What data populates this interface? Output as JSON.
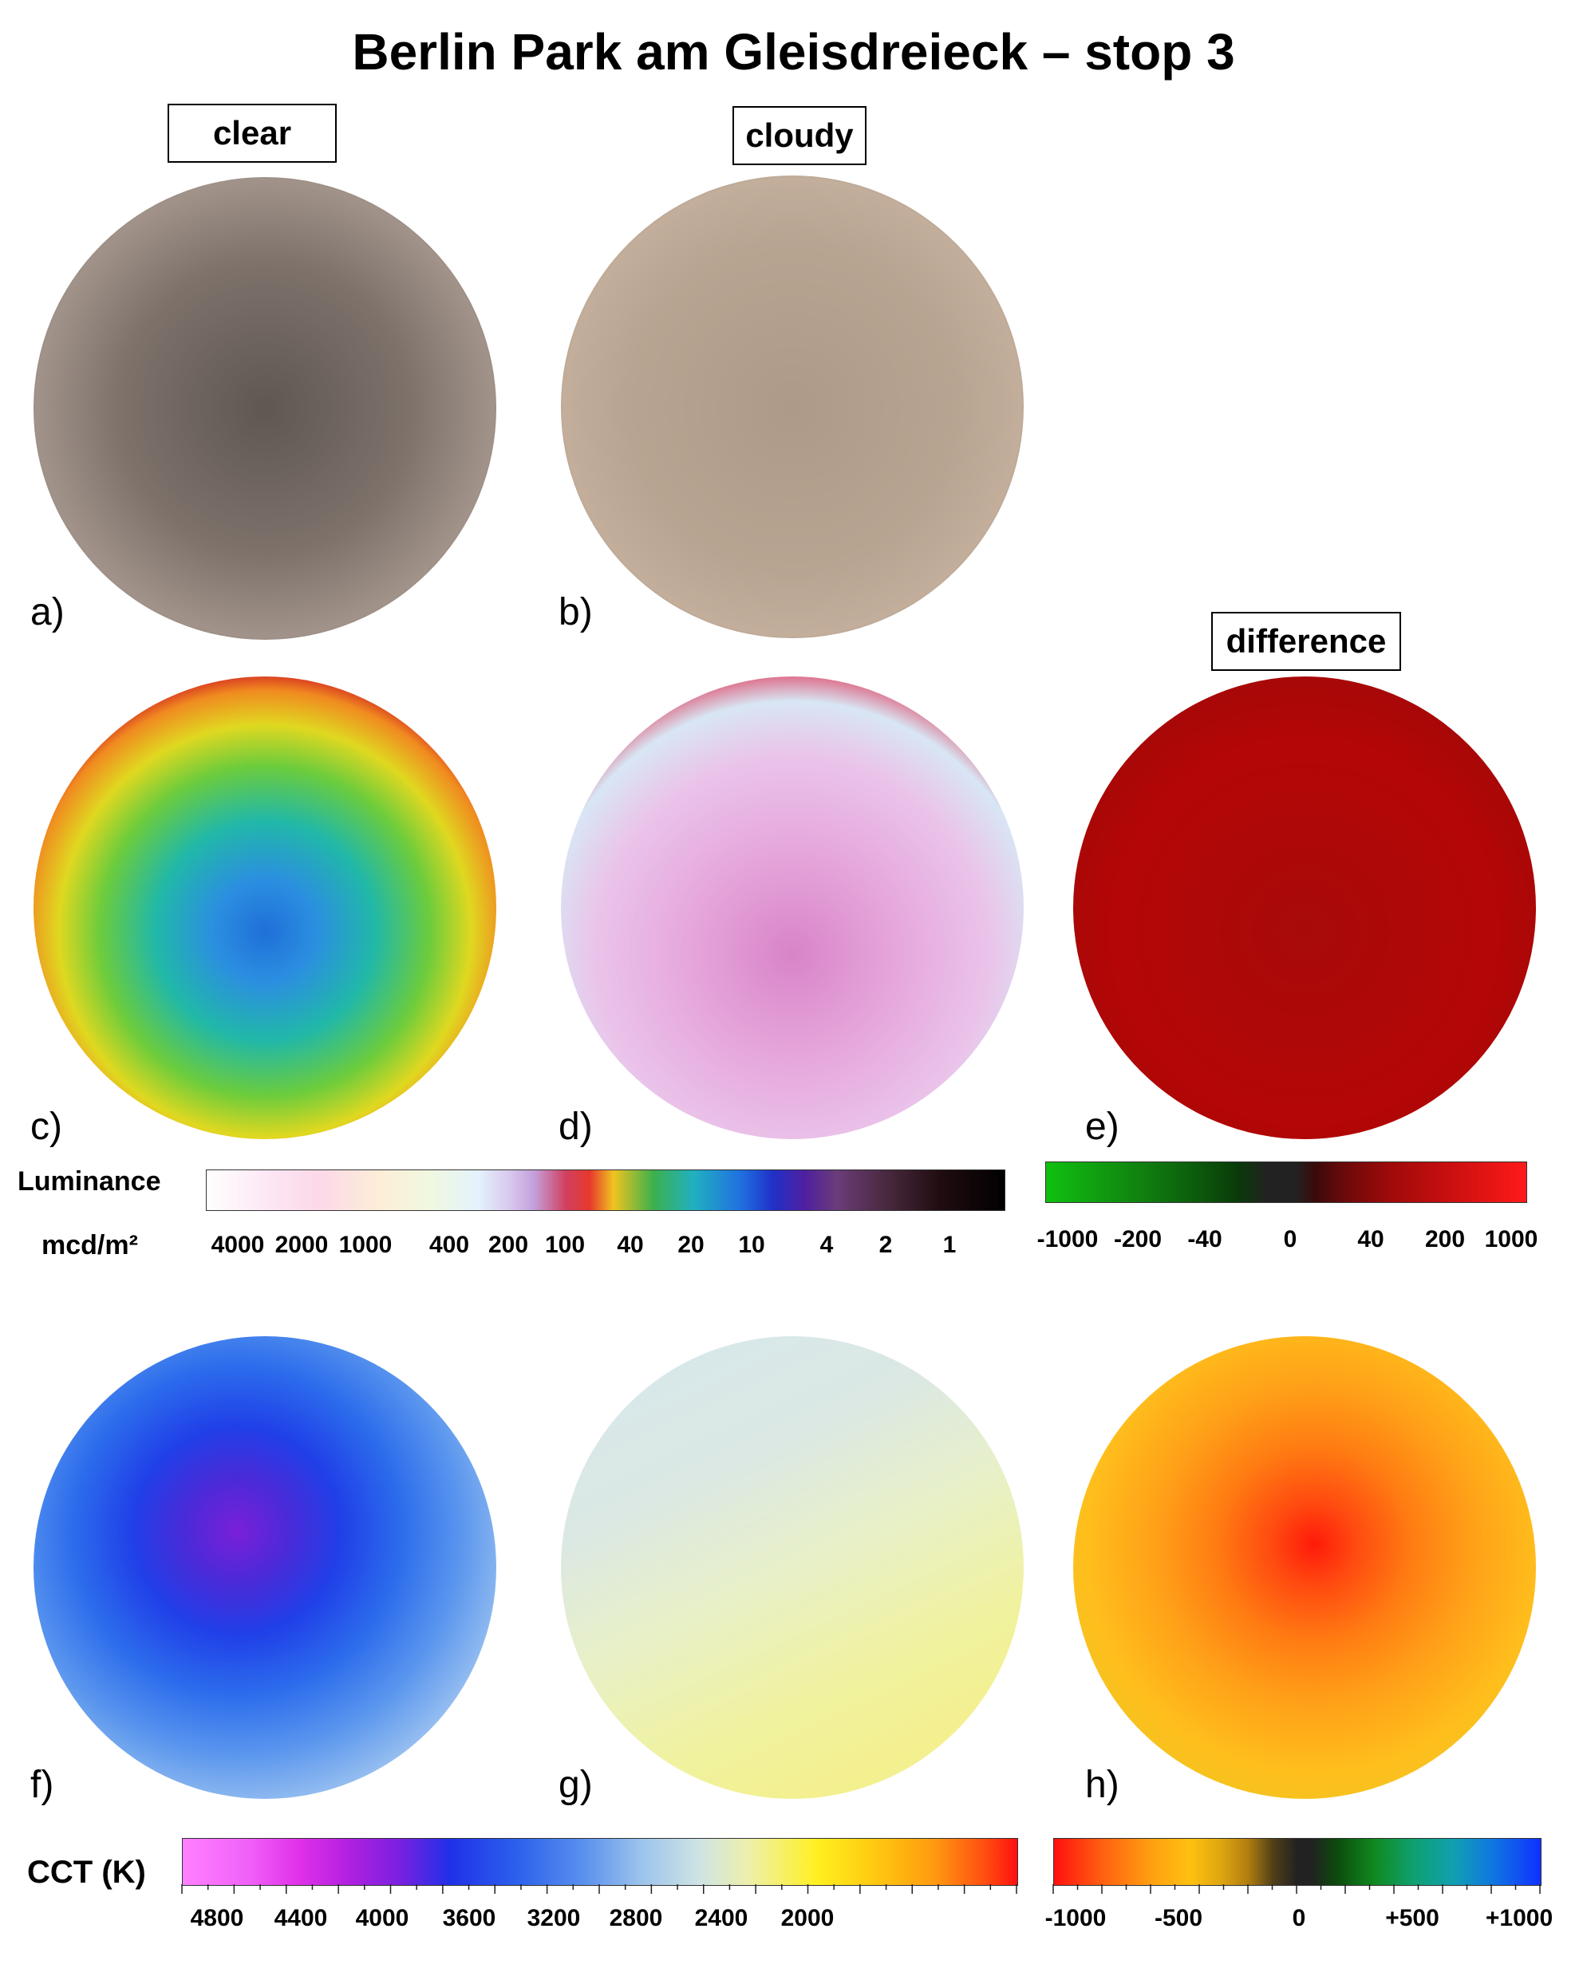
{
  "title": "Berlin Park am Gleisdreieck – stop 3",
  "column_labels": {
    "clear": "clear",
    "cloudy": "cloudy",
    "difference": "difference"
  },
  "panels": {
    "a": "a)",
    "b": "b)",
    "c": "c)",
    "d": "d)",
    "e": "e)",
    "f": "f)",
    "g": "g)",
    "h": "h)"
  },
  "luminance_legend": {
    "title": "Luminance",
    "unit": "mcd/m²",
    "ticks": [
      "4000",
      "2000",
      "1000",
      "400",
      "200",
      "100",
      "40",
      "20",
      "10",
      "4",
      "2",
      "1"
    ]
  },
  "difference_legend": {
    "ticks": [
      "-1000",
      "-200",
      "-40",
      "0",
      "40",
      "200",
      "1000"
    ]
  },
  "cct_legend": {
    "title": "CCT (K)",
    "ticks": [
      "4800",
      "4400",
      "4000",
      "3600",
      "3200",
      "2800",
      "2400",
      "2000"
    ]
  },
  "cct_difference_legend": {
    "ticks": [
      "-1000",
      "-500",
      "0",
      "+500",
      "+1000"
    ]
  }
}
